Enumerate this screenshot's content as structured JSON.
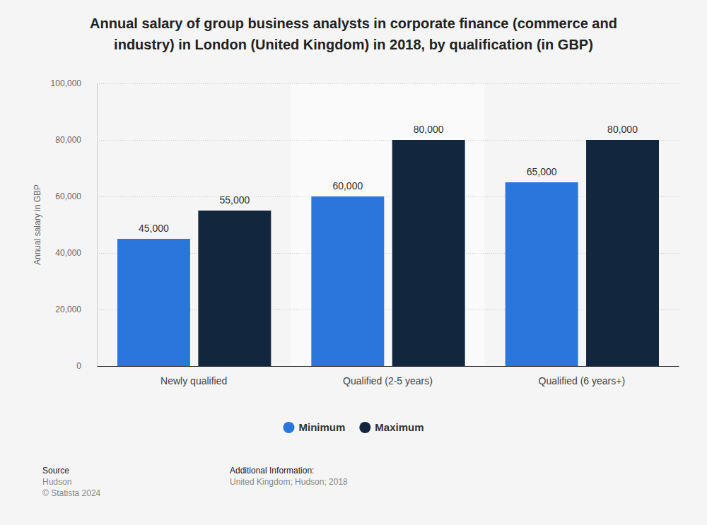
{
  "chart_data": {
    "type": "bar",
    "title": "Annual salary of group business analysts in corporate finance (commerce and industry) in London (United Kingdom) in 2018, by qualification (in GBP)",
    "y_label": "Annual salary in GBP",
    "categories": [
      "Newly qualified",
      "Qualified (2-5 years)",
      "Qualified (6 years+)"
    ],
    "series": [
      {
        "name": "Minimum",
        "color": "#2a76dd",
        "values": [
          45000,
          60000,
          65000
        ],
        "value_labels": [
          "45,000",
          "60,000",
          "65,000"
        ]
      },
      {
        "name": "Maximum",
        "color": "#12263d",
        "values": [
          55000,
          80000,
          80000
        ],
        "value_labels": [
          "55,000",
          "80,000",
          "80,000"
        ]
      }
    ],
    "ylim": [
      0,
      100000
    ],
    "yticks": [
      0,
      {
        "value": 20000,
        "label": "20,000"
      },
      {
        "value": 40000,
        "label": "40,000"
      },
      {
        "value": 60000,
        "label": "60,000"
      },
      {
        "value": 80000,
        "label": "80,000"
      },
      {
        "value": 100000,
        "label": "100,000"
      }
    ],
    "grid": true,
    "data_labels": true,
    "legend": "bottom",
    "source_title": "Source",
    "source": "Hudson",
    "copyright": "© Statista 2024",
    "additional_info_title": "Additional Information:",
    "additional_info": "United Kingdom; Hudson; 2018"
  }
}
